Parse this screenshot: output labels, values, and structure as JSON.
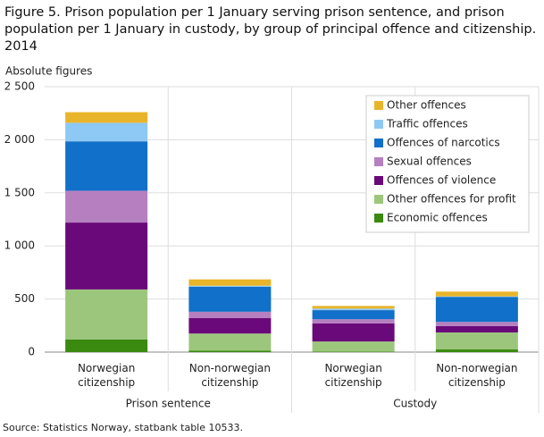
{
  "chart_data": {
    "type": "stacked-bar",
    "title": "Figure 5. Prison population per 1 January serving prison sentence, and prison population per 1 January in custody, by group of principal offence and citizenship. 2014",
    "y_label": "Absolute figures",
    "source": "Source: Statistics Norway, statbank table 10533.",
    "categories": [
      "Norwegian citizenship",
      "Non-norwegian citizenship",
      "Norwegian citizenship",
      "Non-norwegian citizenship"
    ],
    "group_labels": [
      "Prison sentence",
      "Custody"
    ],
    "ylim": [
      0,
      2500
    ],
    "yticks": [
      0,
      500,
      {
        "value": 1000,
        "label": "1 000"
      },
      {
        "value": 1500,
        "label": "1 500"
      },
      {
        "value": 2000,
        "label": "2 000"
      },
      {
        "value": 2500,
        "label": "2 500"
      }
    ],
    "grid": true,
    "legend": "top-right",
    "series": [
      {
        "name": "Economic offences",
        "color": "#3a8a0f",
        "values": [
          120,
          15,
          5,
          25
        ]
      },
      {
        "name": "Other offences for profit",
        "color": "#9dc67d",
        "values": [
          470,
          160,
          95,
          160
        ]
      },
      {
        "name": "Offences of violence",
        "color": "#6a0a7a",
        "values": [
          630,
          145,
          170,
          60
        ]
      },
      {
        "name": "Sexual offences",
        "color": "#b57fc0",
        "values": [
          300,
          60,
          40,
          40
        ]
      },
      {
        "name": "Offences of narcotics",
        "color": "#1170c9",
        "values": [
          465,
          235,
          85,
          235
        ]
      },
      {
        "name": "Traffic offences",
        "color": "#8ec8f4",
        "values": [
          175,
          10,
          15,
          5
        ]
      },
      {
        "name": "Other offences",
        "color": "#e8b52a",
        "values": [
          100,
          60,
          25,
          45
        ]
      }
    ]
  }
}
